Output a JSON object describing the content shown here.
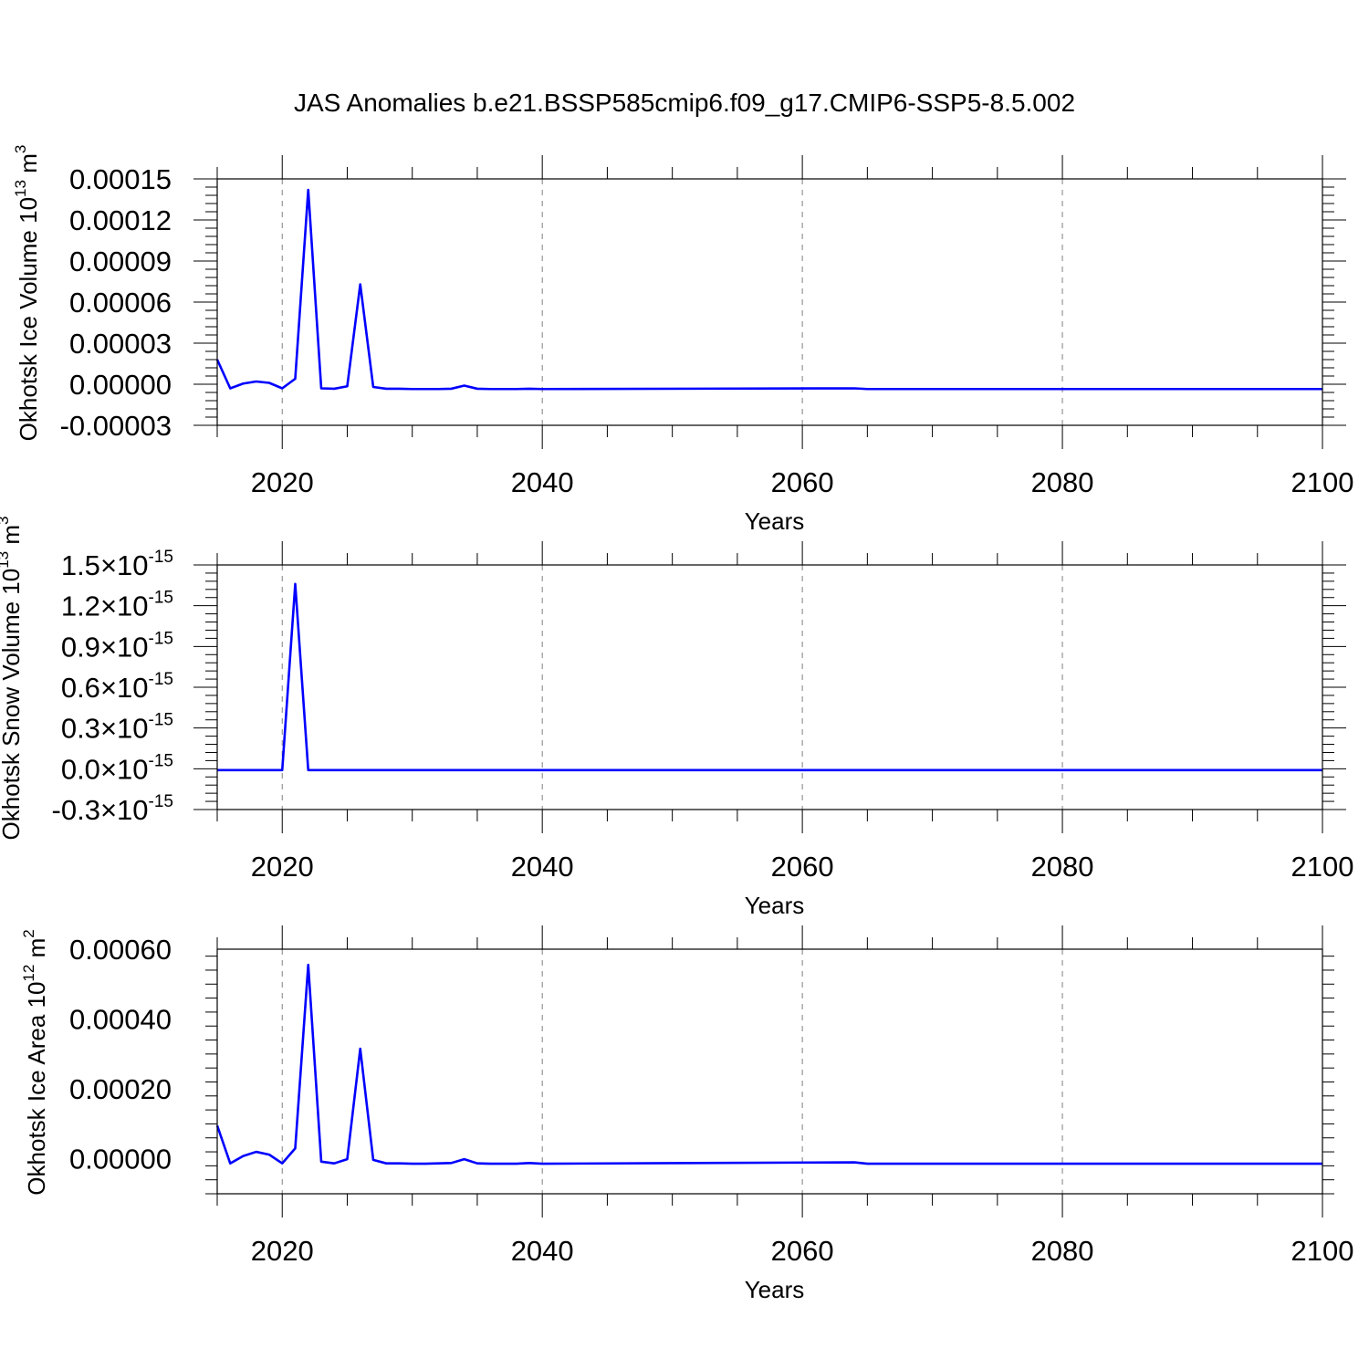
{
  "figure": {
    "title": "JAS Anomalies b.e21.BSSP585cmip6.f09_g17.CMIP6-SSP5-8.5.002"
  },
  "colors": {
    "line": "#0000ff",
    "axis": "#000000",
    "grid": "#808080"
  },
  "chart_data": [
    {
      "type": "line",
      "ylabel_main": "Okhotsk Ice Volume 10",
      "ylabel_sup": "13",
      "ylabel_unit": " m",
      "ylabel_unit_sup": "3",
      "xlabel": "Years",
      "xlim": [
        2015,
        2100
      ],
      "ylim": [
        -3e-05,
        0.00015
      ],
      "yticks": [
        -3e-05,
        0.0,
        3e-05,
        6e-05,
        9e-05,
        0.00012,
        0.00015
      ],
      "ytick_labels": [
        "-0.00003",
        "0.00000",
        "0.00003",
        "0.00006",
        "0.00009",
        "0.00012",
        "0.00015"
      ],
      "xticks": [
        2020,
        2040,
        2060,
        2080,
        2100
      ],
      "xtick_labels": [
        "2020",
        "2040",
        "2060",
        "2080",
        "2100"
      ],
      "grid": "vertical dashed at major x ticks",
      "x": [
        2015,
        2016,
        2017,
        2018,
        2019,
        2020,
        2021,
        2022,
        2023,
        2024,
        2025,
        2026,
        2027,
        2028,
        2029,
        2030,
        2031,
        2032,
        2033,
        2034,
        2035,
        2036,
        2037,
        2038,
        2039,
        2040,
        2064,
        2065,
        2100
      ],
      "y": [
        1.8e-05,
        -3e-06,
        5e-07,
        2e-06,
        1e-06,
        -3e-06,
        4e-06,
        0.000142,
        -3e-06,
        -3.3e-06,
        -1.5e-06,
        7.3e-05,
        -2e-06,
        -3.3e-06,
        -3.3e-06,
        -3.5e-06,
        -3.5e-06,
        -3.5e-06,
        -3.3e-06,
        -1e-06,
        -3.3e-06,
        -3.5e-06,
        -3.5e-06,
        -3.5e-06,
        -3.3e-06,
        -3.5e-06,
        -3e-06,
        -3.5e-06,
        -3.5e-06
      ]
    },
    {
      "type": "line",
      "ylabel_main": "Okhotsk Snow Volume 10",
      "ylabel_sup": "13",
      "ylabel_unit": " m",
      "ylabel_unit_sup": "3",
      "xlabel": "Years",
      "xlim": [
        2015,
        2100
      ],
      "ylim": [
        -3e-16,
        1.5e-15
      ],
      "yticks": [
        -3e-16,
        0.0,
        3e-16,
        6e-16,
        9e-16,
        1.2e-15,
        1.5e-15
      ],
      "ytick_labels": [
        {
          "mantissa": "-0.3",
          "times": "×10",
          "exp": "-15"
        },
        {
          "mantissa": "0.0",
          "times": "×10",
          "exp": "-15"
        },
        {
          "mantissa": "0.3",
          "times": "×10",
          "exp": "-15"
        },
        {
          "mantissa": "0.6",
          "times": "×10",
          "exp": "-15"
        },
        {
          "mantissa": "0.9",
          "times": "×10",
          "exp": "-15"
        },
        {
          "mantissa": "1.2",
          "times": "×10",
          "exp": "-15"
        },
        {
          "mantissa": "1.5",
          "times": "×10",
          "exp": "-15"
        }
      ],
      "xticks": [
        2020,
        2040,
        2060,
        2080,
        2100
      ],
      "xtick_labels": [
        "2020",
        "2040",
        "2060",
        "2080",
        "2100"
      ],
      "grid": "vertical dashed at major x ticks",
      "x": [
        2015,
        2020,
        2021,
        2022,
        2100
      ],
      "y": [
        -1e-17,
        -1e-17,
        1.36e-15,
        -1e-17,
        -1e-17
      ]
    },
    {
      "type": "line",
      "ylabel_main": "Okhotsk Ice Area 10",
      "ylabel_sup": "12",
      "ylabel_unit": " m",
      "ylabel_unit_sup": "2",
      "xlabel": "Years",
      "xlim": [
        2015,
        2100
      ],
      "ylim": [
        -0.0001,
        0.0006
      ],
      "yticks": [
        0.0,
        0.0002,
        0.0004,
        0.0006
      ],
      "ytick_labels": [
        "0.00000",
        "0.00020",
        "0.00040",
        "0.00060"
      ],
      "xticks": [
        2020,
        2040,
        2060,
        2080,
        2100
      ],
      "xtick_labels": [
        "2020",
        "2040",
        "2060",
        "2080",
        "2100"
      ],
      "grid": "vertical dashed at major x ticks",
      "x": [
        2015,
        2016,
        2017,
        2018,
        2019,
        2020,
        2021,
        2022,
        2023,
        2024,
        2025,
        2026,
        2027,
        2028,
        2029,
        2030,
        2031,
        2032,
        2033,
        2034,
        2035,
        2036,
        2037,
        2038,
        2039,
        2040,
        2064,
        2065,
        2100
      ],
      "y": [
        9.5e-05,
        -1.3e-05,
        8e-06,
        2e-05,
        1.2e-05,
        -1.3e-05,
        3e-05,
        0.000555,
        -8e-06,
        -1.3e-05,
        -1e-06,
        0.000315,
        -3e-06,
        -1.3e-05,
        -1.3e-05,
        -1.4e-05,
        -1.4e-05,
        -1.3e-05,
        -1.2e-05,
        -1e-06,
        -1.3e-05,
        -1.4e-05,
        -1.4e-05,
        -1.4e-05,
        -1.2e-05,
        -1.4e-05,
        -1e-05,
        -1.4e-05,
        -1.4e-05
      ]
    }
  ]
}
